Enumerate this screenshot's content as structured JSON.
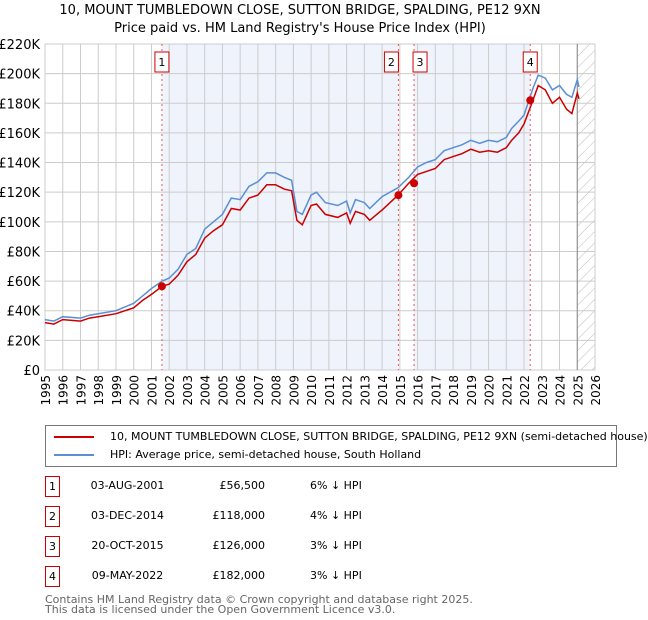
{
  "chart_data": {
    "type": "line",
    "title": "10, MOUNT TUMBLEDOWN CLOSE, SUTTON BRIDGE, SPALDING, PE12 9XN",
    "subtitle": "Price paid vs. HM Land Registry's House Price Index (HPI)",
    "xlim": [
      1995,
      2026
    ],
    "ylim": [
      0,
      220000
    ],
    "y_ticks": [
      0,
      20000,
      40000,
      60000,
      80000,
      100000,
      120000,
      140000,
      160000,
      180000,
      200000,
      220000
    ],
    "y_tick_labels": [
      "£0",
      "£20K",
      "£40K",
      "£60K",
      "£80K",
      "£100K",
      "£120K",
      "£140K",
      "£160K",
      "£180K",
      "£200K",
      "£220K"
    ],
    "x_ticks": [
      "1995",
      "1996",
      "1997",
      "1998",
      "1999",
      "2000",
      "2001",
      "2002",
      "2003",
      "2004",
      "2005",
      "2006",
      "2007",
      "2008",
      "2009",
      "2010",
      "2011",
      "2012",
      "2013",
      "2014",
      "2015",
      "2016",
      "2017",
      "2018",
      "2019",
      "2020",
      "2021",
      "2022",
      "2023",
      "2024",
      "2025",
      "2026"
    ],
    "grid": true,
    "data_end": 2025.0,
    "x": [
      1995,
      1995.5,
      1996,
      1997,
      1997.5,
      1998,
      1999,
      2000,
      2000.5,
      2001,
      2001.6,
      2002,
      2002.5,
      2003,
      2003.5,
      2004,
      2004.5,
      2005,
      2005.5,
      2006,
      2006.5,
      2007,
      2007.5,
      2008,
      2008.5,
      2008.9,
      2009.2,
      2009.5,
      2010,
      2010.3,
      2010.8,
      2011.5,
      2012,
      2012.2,
      2012.5,
      2013,
      2013.3,
      2014,
      2014.9,
      2015.5,
      2016,
      2016.5,
      2017,
      2017.5,
      2018,
      2018.5,
      2019,
      2019.5,
      2020,
      2020.5,
      2021,
      2021.3,
      2021.7,
      2022,
      2022.5,
      2022.8,
      2023.2,
      2023.6,
      2024,
      2024.4,
      2024.7,
      2025,
      2025.1
    ],
    "series": [
      {
        "name": "10, MOUNT TUMBLEDOWN CLOSE, SUTTON BRIDGE, SPALDING, PE12 9XN (semi-detached house)",
        "color": "#cc0000",
        "values": [
          32000,
          31000,
          34000,
          33000,
          35000,
          36000,
          38000,
          42000,
          47000,
          51000,
          56500,
          58000,
          64000,
          73000,
          78000,
          89000,
          94000,
          98000,
          109000,
          108000,
          116000,
          118000,
          125000,
          125000,
          122000,
          121000,
          101000,
          98000,
          111000,
          112000,
          105000,
          103000,
          106000,
          99000,
          107000,
          105000,
          101000,
          108000,
          118000,
          126000,
          132000,
          134000,
          136000,
          142000,
          144000,
          146000,
          149000,
          147000,
          148000,
          147000,
          150000,
          155000,
          160000,
          166000,
          182000,
          192000,
          189000,
          180000,
          184000,
          176000,
          173000,
          187000,
          183000
        ]
      },
      {
        "name": "HPI: Average price, semi-detached house, South Holland",
        "color": "#5b8fd4",
        "values": [
          34000,
          33000,
          36000,
          35000,
          37000,
          38000,
          40000,
          45000,
          50000,
          55000,
          60000,
          62000,
          68000,
          78000,
          82000,
          95000,
          100000,
          105000,
          116000,
          115000,
          124000,
          127000,
          133000,
          133000,
          130000,
          128000,
          107000,
          105000,
          118000,
          120000,
          113000,
          111000,
          114000,
          106000,
          115000,
          113000,
          109000,
          117000,
          123000,
          130000,
          137000,
          140000,
          142000,
          148000,
          150000,
          152000,
          155000,
          153000,
          155000,
          154000,
          157000,
          163000,
          168000,
          172000,
          190000,
          199000,
          197000,
          189000,
          192000,
          186000,
          184000,
          196000,
          191000
        ]
      }
    ],
    "sales": [
      {
        "n": "1",
        "x": 2001.59,
        "price": 56500,
        "date": "03-AUG-2001",
        "price_label": "£56,500",
        "hpi": "6% ↓ HPI"
      },
      {
        "n": "2",
        "x": 2014.92,
        "price": 118000,
        "date": "03-DEC-2014",
        "price_label": "£118,000",
        "hpi": "4% ↓ HPI"
      },
      {
        "n": "3",
        "x": 2015.8,
        "price": 126000,
        "date": "20-OCT-2015",
        "price_label": "£126,000",
        "hpi": "3% ↓ HPI"
      },
      {
        "n": "4",
        "x": 2022.35,
        "price": 182000,
        "date": "09-MAY-2022",
        "price_label": "£182,000",
        "hpi": "3% ↓ HPI"
      }
    ]
  },
  "footer": {
    "line1": "Contains HM Land Registry data © Crown copyright and database right 2025.",
    "line2": "This data is licensed under the Open Government Licence v3.0."
  }
}
